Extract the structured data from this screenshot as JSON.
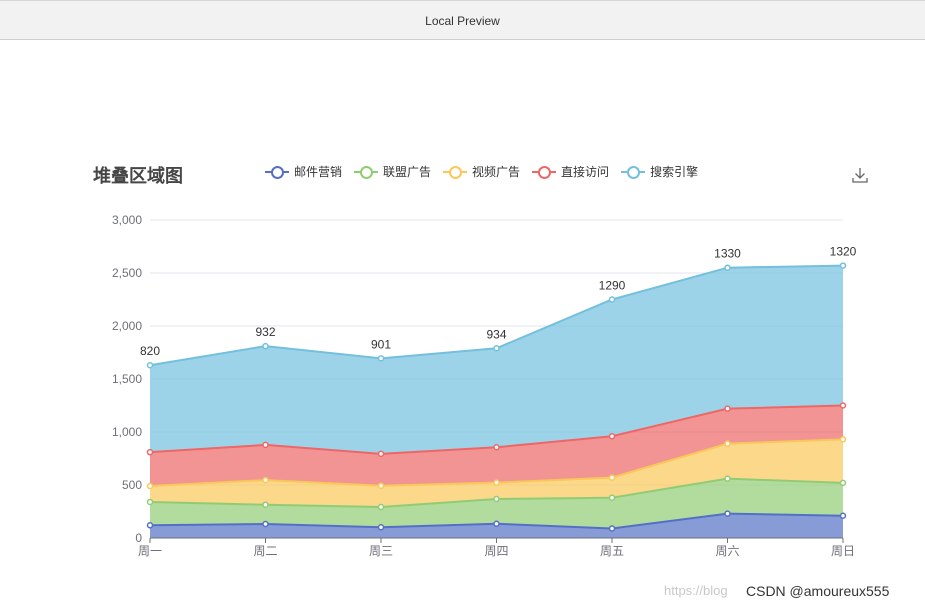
{
  "window": {
    "title": "Local Preview"
  },
  "chart_data": {
    "type": "area",
    "stacked": true,
    "title": "堆叠区域图",
    "categories": [
      "周一",
      "周二",
      "周三",
      "周四",
      "周五",
      "周六",
      "周日"
    ],
    "series": [
      {
        "name": "邮件营销",
        "color": "#5470c6",
        "values": [
          120,
          132,
          101,
          134,
          90,
          230,
          210
        ]
      },
      {
        "name": "联盟广告",
        "color": "#91cc75",
        "values": [
          220,
          182,
          191,
          234,
          290,
          330,
          310
        ]
      },
      {
        "name": "视频广告",
        "color": "#fac858",
        "values": [
          150,
          232,
          201,
          154,
          190,
          330,
          410
        ]
      },
      {
        "name": "直接访问",
        "color": "#ee6666",
        "values": [
          320,
          332,
          301,
          334,
          390,
          330,
          320
        ]
      },
      {
        "name": "搜索引擎",
        "color": "#73c0de",
        "values": [
          820,
          932,
          901,
          934,
          1290,
          1330,
          1320
        ]
      }
    ],
    "top_labels": [
      "820",
      "932",
      "901",
      "934",
      "1290",
      "1330",
      "1320"
    ],
    "ylim": [
      0,
      3000
    ],
    "yticks": [
      "0",
      "500",
      "1,000",
      "1,500",
      "2,000",
      "2,500",
      "3,000"
    ],
    "legend_position": "top",
    "grid": true
  },
  "toolbox": {
    "icon": "download-icon"
  },
  "watermark": {
    "faint": "https://blog",
    "text": "CSDN @amoureux555"
  }
}
